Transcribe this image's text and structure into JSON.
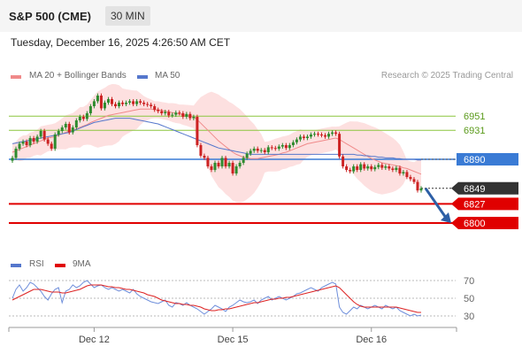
{
  "header": {
    "title": "S&P 500 (CME)",
    "timeframe": "30 MIN"
  },
  "timestamp": "Tuesday, December 16, 2025 4:26:50 AM CET",
  "legend": {
    "ma20_bb": "MA 20 + Bollinger Bands",
    "ma50": "MA 50",
    "credit": "Research © 2025 Trading Central"
  },
  "rsi_legend": {
    "rsi": "RSI",
    "ma9": "9MA"
  },
  "colors": {
    "bb_fill": "#fde0e0",
    "ma20": "#f08a8a",
    "ma50": "#5577cc",
    "pivot": "#3a7bd5",
    "support": "#e00000",
    "resistance": "#8cc63f",
    "bull": "#2e8b2e",
    "bear": "#cc2222",
    "last": "#333333",
    "arrow": "#2d5fa6"
  },
  "chart_data": [
    {
      "type": "candlestick",
      "x_ticks": [
        "Dec 12",
        "Dec 15",
        "Dec 16"
      ],
      "y_range": [
        6790,
        6990
      ],
      "price_levels": [
        {
          "value": 6951,
          "label": "6951",
          "kind": "resistance"
        },
        {
          "value": 6931,
          "label": "6931",
          "kind": "resistance"
        },
        {
          "value": 6890,
          "label": "6890",
          "kind": "pivot"
        },
        {
          "value": 6849,
          "label": "6849",
          "kind": "last"
        },
        {
          "value": 6827,
          "label": "6827",
          "kind": "support"
        },
        {
          "value": 6800,
          "label": "6800",
          "kind": "support"
        }
      ],
      "close": [
        6892,
        6905,
        6912,
        6915,
        6910,
        6920,
        6915,
        6922,
        6930,
        6918,
        6912,
        6905,
        6925,
        6930,
        6935,
        6940,
        6928,
        6935,
        6945,
        6950,
        6947,
        6955,
        6965,
        6972,
        6980,
        6962,
        6970,
        6975,
        6968,
        6965,
        6970,
        6968,
        6970,
        6972,
        6968,
        6972,
        6970,
        6968,
        6967,
        6965,
        6960,
        6958,
        6955,
        6957,
        6952,
        6953,
        6956,
        6955,
        6950,
        6954,
        6948,
        6950,
        6910,
        6895,
        6892,
        6880,
        6875,
        6885,
        6880,
        6892,
        6880,
        6885,
        6870,
        6880,
        6885,
        6892,
        6898,
        6902,
        6905,
        6902,
        6903,
        6900,
        6907,
        6906,
        6905,
        6908,
        6910,
        6906,
        6910,
        6914,
        6918,
        6922,
        6920,
        6922,
        6925,
        6926,
        6925,
        6924,
        6922,
        6926,
        6928,
        6926,
        6894,
        6880,
        6875,
        6873,
        6880,
        6875,
        6883,
        6877,
        6880,
        6876,
        6879,
        6882,
        6878,
        6880,
        6877,
        6875,
        6878,
        6870,
        6872,
        6865,
        6862,
        6858,
        6846,
        6849
      ],
      "ma20": [
        6900,
        6902,
        6904,
        6906,
        6908,
        6910,
        6912,
        6914,
        6916,
        6918,
        6920,
        6921,
        6922,
        6924,
        6926,
        6928,
        6930,
        6931,
        6933,
        6935,
        6937,
        6939,
        6942,
        6944,
        6946,
        6948,
        6950,
        6952,
        6953,
        6954,
        6955,
        6956,
        6957,
        6958,
        6959,
        6960,
        6961,
        6961,
        6961,
        6961,
        6960,
        6960,
        6959,
        6958,
        6957,
        6956,
        6955,
        6954,
        6953,
        6952,
        6951,
        6950,
        6946,
        6941,
        6936,
        6931,
        6926,
        6921,
        6916,
        6912,
        6908,
        6904,
        6900,
        6897,
        6895,
        6893,
        6892,
        6891,
        6891,
        6891,
        6892,
        6893,
        6894,
        6895,
        6896,
        6897,
        6899,
        6900,
        6902,
        6904,
        6906,
        6908,
        6910,
        6912,
        6913,
        6914,
        6915,
        6916,
        6917,
        6918,
        6919,
        6920,
        6918,
        6915,
        6912,
        6909,
        6906,
        6903,
        6900,
        6897,
        6894,
        6891,
        6889,
        6887,
        6885,
        6884,
        6883,
        6882,
        6881,
        6880,
        6878,
        6877,
        6875,
        6873,
        6871,
        6869
      ],
      "ma50": [
        6912,
        6913,
        6914,
        6915,
        6916,
        6917,
        6918,
        6919,
        6920,
        6921,
        6922,
        6923,
        6924,
        6925,
        6926,
        6927,
        6928,
        6930,
        6932,
        6934,
        6936,
        6938,
        6940,
        6942,
        6943,
        6944,
        6945,
        6946,
        6947,
        6948,
        6948,
        6948,
        6948,
        6948,
        6947,
        6946,
        6945,
        6944,
        6943,
        6942,
        6941,
        6940,
        6938,
        6936,
        6934,
        6932,
        6930,
        6928,
        6926,
        6924,
        6922,
        6920,
        6918,
        6916,
        6914,
        6912,
        6910,
        6908,
        6906,
        6905,
        6904,
        6903,
        6902,
        6901,
        6900,
        6899,
        6898,
        6897,
        6897,
        6897,
        6897,
        6897,
        6897,
        6897,
        6897,
        6897,
        6897,
        6897,
        6897,
        6897,
        6897,
        6897,
        6897,
        6897,
        6897,
        6897,
        6897,
        6897,
        6897,
        6897,
        6897,
        6897,
        6897,
        6897,
        6897,
        6897,
        6897,
        6896,
        6896,
        6895,
        6895,
        6894,
        6894,
        6893,
        6893,
        6892,
        6892,
        6892,
        6891,
        6891,
        6890,
        6890,
        6890,
        6890,
        6889,
        6889
      ],
      "projection": {
        "from": 6849,
        "to": 6800
      }
    },
    {
      "type": "line",
      "name": "RSI",
      "y_ticks": [
        70,
        50,
        30
      ],
      "y_range": [
        20,
        80
      ],
      "rsi": [
        50,
        60,
        65,
        58,
        62,
        68,
        66,
        62,
        58,
        52,
        48,
        55,
        60,
        62,
        45,
        58,
        60,
        65,
        62,
        64,
        68,
        70,
        66,
        62,
        64,
        65,
        62,
        60,
        62,
        60,
        58,
        60,
        58,
        56,
        60,
        55,
        52,
        50,
        48,
        46,
        45,
        44,
        46,
        48,
        42,
        40,
        45,
        44,
        42,
        45,
        42,
        40,
        38,
        35,
        32,
        35,
        38,
        42,
        40,
        38,
        35,
        40,
        42,
        45,
        48,
        46,
        45,
        46,
        48,
        44,
        48,
        50,
        52,
        48,
        50,
        52,
        50,
        48,
        50,
        52,
        55,
        56,
        58,
        60,
        62,
        60,
        58,
        62,
        64,
        66,
        68,
        66,
        40,
        34,
        32,
        36,
        40,
        38,
        42,
        40,
        38,
        40,
        42,
        40,
        38,
        42,
        40,
        38,
        40,
        36,
        34,
        32,
        30,
        32,
        30,
        31
      ],
      "ma9": [
        48,
        50,
        52,
        54,
        56,
        58,
        60,
        60,
        60,
        59,
        58,
        57,
        57,
        57,
        56,
        56,
        57,
        58,
        59,
        60,
        62,
        64,
        65,
        65,
        65,
        65,
        64,
        63,
        63,
        62,
        62,
        61,
        60,
        60,
        59,
        58,
        57,
        56,
        54,
        53,
        52,
        50,
        48,
        47,
        46,
        45,
        44,
        44,
        43,
        43,
        42,
        42,
        41,
        40,
        38,
        37,
        36,
        36,
        37,
        37,
        38,
        38,
        39,
        40,
        41,
        42,
        43,
        44,
        45,
        45,
        46,
        47,
        48,
        49,
        49,
        50,
        50,
        51,
        51,
        52,
        53,
        54,
        55,
        56,
        57,
        58,
        59,
        60,
        61,
        62,
        63,
        64,
        62,
        58,
        54,
        50,
        46,
        43,
        41,
        40,
        40,
        40,
        40,
        40,
        40,
        40,
        40,
        40,
        40,
        39,
        38,
        37,
        36,
        35,
        34,
        34
      ]
    }
  ]
}
